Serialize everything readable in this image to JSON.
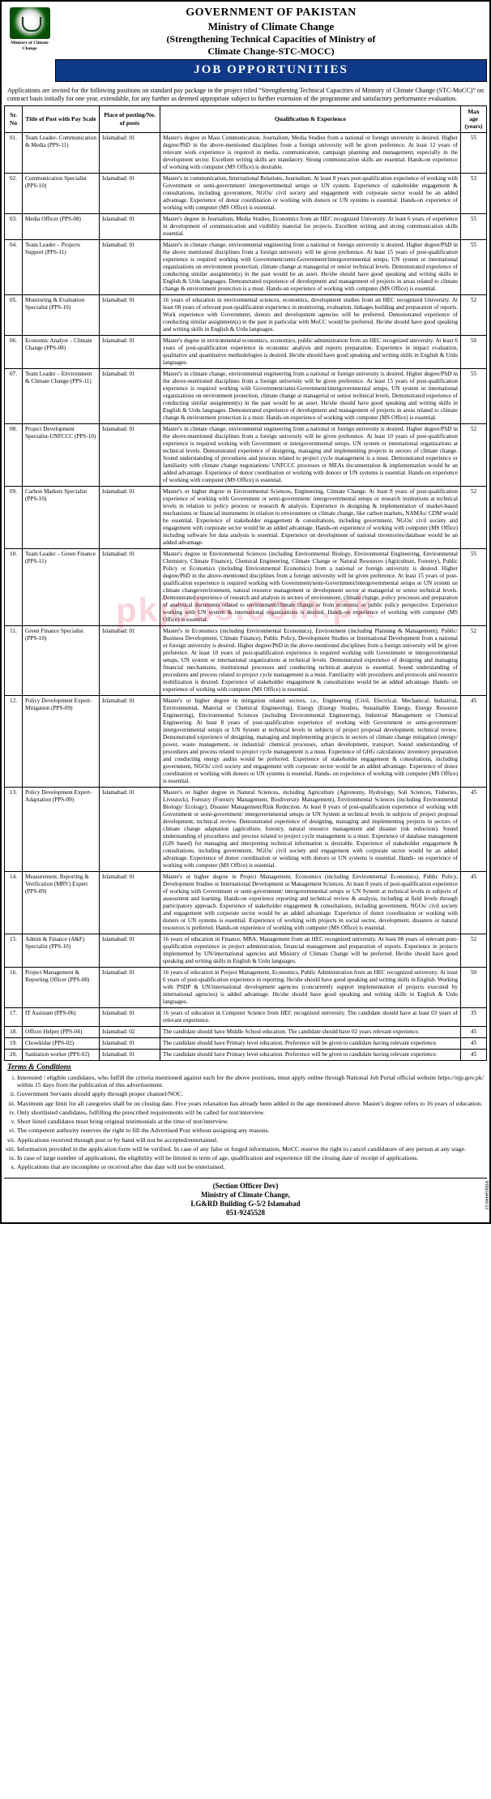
{
  "header": {
    "gov": "GOVERNMENT OF PAKISTAN",
    "ministry": "Ministry of Climate Change",
    "subtitle1": "(Strengthening Technical Capacities of Ministry of",
    "subtitle2": "Climate Change-STC-MOCC)",
    "banner": "JOB OPPORTUNITIES",
    "emblem_caption": "Ministry of Climate Change"
  },
  "preamble": "Applications are invited for the following positions on standard pay package in the project titled “Strengthening Technical Capacities of Ministry of Climate Change (STC-MoCC)” on contract basis initially for one year, extendable, for any further as deemed appropriate subject to further extension of the programme and satisfactory performance evaluation.",
  "columns": {
    "no": "Sr. No",
    "title": "Title of Post with Pay Scale",
    "place": "Place of posting/No. of posts",
    "qual": "Qualification & Experience",
    "age": "Max age (years)"
  },
  "rows": [
    {
      "no": "01.",
      "title": "Team Leader- Communication & Media (PPS-11)",
      "place": "Islamabad: 01",
      "qual": "Master's degree in Mass Communication, Journalism, Media Studies from a national or foreign university is desired. Higher degree/PhD in the above-mentioned disciplines from a foreign university will be given preference. At least 12 years of relevant work experience is required in media, communication, campaign planning and management, especially in the development sector. Excellent writing skills are mandatory. Strong communication skills are essential. Hands-on experience of working with computer (MS Office) is desirable.",
      "age": "55"
    },
    {
      "no": "02.",
      "title": "Communication Specialist (PPS-10)",
      "place": "Islamabad: 01",
      "qual": "Master's in communication, International Relations, Journalism. At least 8 years post-qualification experience of working with Government or semi-government/ intergovernmental setups or UN system. Experience of stakeholder engagement & consultations, including government, NGOs/ civil society and engagement with corporate sector would be an added advantage. Experience of donor coordination or working with donors or UN systems is essential. Hands-on experience of working with computer (MS Office) is essential.",
      "age": "53"
    },
    {
      "no": "03.",
      "title": "Media Officer (PPS-08)",
      "place": "Islamabad: 01",
      "qual": "Master's degree in Journalism, Media Studies, Economics from an HEC recognized University. At least 6 years of experience in development of communication and visibility material for projects. Excellent writing and strong communication skills essential.",
      "age": "55"
    },
    {
      "no": "04.",
      "title": "Team Leader – Projects Support (PPS-11)",
      "place": "Islamabad: 01",
      "qual": "Master's in climate change, environmental engineering from a national or foreign university is desired. Higher degree/PhD in the above mentioned disciplines from a foreign university will be given preference. At least 15 years of post-qualification experience is required working with Government/semi-Government/intergovernmental setups, UN system or international organizations on environment protection, climate change at managerial or senior technical levels. Demonstrated experience of conducting similar assignment(s) in the past would be an asset. He/she should have good speaking and writing skills in English & Urdu languages. Demonstrated experience of development and management of projects in areas related to climate change & environment protection is a must. Hands-on experience of working with computer (MS Office) is essential.",
      "age": "55"
    },
    {
      "no": "05.",
      "title": "Monitoring & Evaluation Specialist (PPS-10)",
      "place": "Islamabad: 01",
      "qual": "16 years of education in environmental sciences, economics, development studies from an HEC recognized University. At least 08 years of relevant post-qualification experience in monitoring, evaluation, linkages building and preparation of reports. Work experience with Government, donors and development agencies will be preferred. Demonstrated experience of conducting similar assignment(s) in the past in particular with MoCC would be preferred. He/she should have good speaking and writing skills in English & Urdu languages.",
      "age": "52"
    },
    {
      "no": "06.",
      "title": "Economic Analyst – Climate Change (PPS-08)",
      "place": "Islamabad: 01",
      "qual": "Master's degree in environmental economics, economics, public administration from an HEC recognized university. At least 6 years of post-qualification experience in economic analysis and reports preparation. Experience in impact evaluation, qualitative and quantitative methodologies is desired. He/she should have good speaking and writing skills in English & Urdu languages.",
      "age": "50"
    },
    {
      "no": "07.",
      "title": "Team Leader – Environment & Climate Change (PPS-11)",
      "place": "Islamabad: 01",
      "qual": "Master's in climate change, environmental engineering from a national or foreign university is desired. Higher degree/PhD in the above-mentioned disciplines from a foreign university will be given preference. At least 15 years of post-qualification experience is required working with Government/semi-Government/intergovernmental setups, UN system or international organizations on environment protection, climate change at managerial or senior technical levels. Demonstrated experience of conducting similar assignment(s) in the past would be an asset. He/she should have good speaking and writing skills in English & Urdu languages. Demonstrated experience of development and management of projects in areas related to climate change & environment protection is a must. Hands-on experience of working with computer (MS Office) is essential.",
      "age": "55"
    },
    {
      "no": "08.",
      "title": "Project Development Specialist-UNFCCC (PPS-10)",
      "place": "Islamabad: 01",
      "qual": "Master's in climate change, environmental engineering from a national or foreign university is desired. Higher degree/PhD in the above-mentioned disciplines from a foreign university will be given preference. At least 10 years of post-qualification experience is required working with Government or intergovernmental setups, UN system or international organizations at technical levels. Demonstrated experience of designing, managing and implementing projects in sectors of climate change. Sound understanding of procedures and process related to project cycle management is a must. Demonstrated experience or familiarity with climate change negotiations/ UNFCCC processes or MEAs documentation & implementation would be an added advantage. Experience of donor coordination or working with donors or UN systems is essential. Hands-on experience of working with computer (MS Office) is essential.",
      "age": "52"
    },
    {
      "no": "09.",
      "title": "Carbon Markets Specialist (PPS-10)",
      "place": "Islamabad: 01",
      "qual": "Master's or higher degree in Environmental Sciences, Engineering, Climate Change. At least 8 years of post-qualification experience of working with Government or semi-government/ intergovernmental setups or research institutions at technical levels in relation to policy process or research & analysis. Experience in designing & implementation of market-based mechanisms or financial instruments in relation to environment or climate change, like carbon markets, NAMAs/ CDM would be essential. Experience of stakeholder engagement & consultations, including government, NGOs/ civil society and engagement with corporate sector would be an added advantage. Hands-on experience of working with computer (MS Office) including software for data analysis is essential. Experience on development of national inventories/database would be an added advantage.",
      "age": "52"
    },
    {
      "no": "10.",
      "title": "Team Leader – Green Finance (PPS-11)",
      "place": "Islamabad: 01",
      "qual": "Master's degree in Environmental Sciences (including Environmental Biology, Environmental Engineering, Environmental Chemistry, Climate Finance), Chemical Engineering, Climate Change or Natural Resources (Agriculture, Forestry), Public Policy or Economics (including Environmental Economics) from a national or foreign university is desired. Higher degree/PhD in the above-mentioned disciplines from a foreign university will be given preference. At least 15 years of post-qualification experience is required working with Government/semi-Government/intergovernmental setups or UN system on climate change/environment, natural resource management or development sector at managerial or senior technical levels. Demonstrated experience of research and analysis in sectors of environment, climate change, policy processes and preparation of analytical documents related to environment/climate change or from economic or public policy perspective. Experience working with UN system & international organizations is desired. Hands-on experience of working with computer (MS Office) is essential.",
      "age": "55"
    },
    {
      "no": "11.",
      "title": "Green Finance Specialist (PPS-10)",
      "place": "Islamabad: 01",
      "qual": "Master's in Economics (including Environmental Economics), Environment (including Planning & Management), Public/ Business Development, Climate Finance), Public Policy, Development Studies or International Development from a national or foreign university is desired. Higher degree/PhD in the above-mentioned disciplines from a foreign university will be given preference. At least 10 years of post-qualification experience is required working with Government or intergovernmental setups, UN system or international organizations at technical levels. Demonstrated experience of designing and managing financial mechanisms, institutional processes and conducting technical analysis is essential. Sound understanding of procedures and process related to project cycle management is a must. Familiarity with procedures and protocols and resource mobilization is desired. Experience of stakeholder engagement & consultations would be an added advantage. Hands- on experience of working with computer (MS Office) is essential.",
      "age": "52"
    },
    {
      "no": "12.",
      "title": "Policy Development Expert-Mitigation (PPS-09)",
      "place": "Islamabad: 01",
      "qual": "Master's or higher degree in mitigation related sectors, i.e., Engineering (Civil, Electrical, Mechanical, Industrial, Environmental, Material or Chemical Engineering), Energy (Energy Studies, Sustainable Energy, Energy Resource Engineering), Environmental Sciences (including Environmental Engineering), Industrial Management or Chemical Engineering. At least 8 years of post-qualification experience of working with Government or semi-government/ intergovernmental setups or UN System at technical levels in subjects of project proposal development, technical review. Demonstrated experience of designing, managing and implementing projects in sectors of climate change mitigation (energy/ power, waste management, or industrial/ chemical processes, urban development, transport. Sound understanding of procedures and process related to project cycle management is a must. Experience of GHG calculations/ inventory preparation and conducting energy audits would be preferred. Experience of stakeholder engagement & consultations, including government, NGOs/ civil society and engagement with corporate sector would be an added advantage. Experience of donor coordination or working with donors or UN systems is essential. Hands- on experience of working with computer (MS Office) is essential.",
      "age": "45"
    },
    {
      "no": "13.",
      "title": "Policy Development Expert-Adaptation (PPS-09)",
      "place": "Islamabad: 01",
      "qual": "Master's or higher degree in Natural Sciences, including Agriculture (Agronomy, Hydrology, Soil Sciences, Fisheries, Livestock), Forestry (Forestry Management, Biodiversity Management), Environmental Sciences (including Environmental Biology/ Ecology), Disaster Management/Risk Reduction. At least 8 years of post-qualification experience of working with Government or semi-government/ intergovernmental setups or UN System at technical levels in subjects of project proposal development, technical review. Demonstrated experience of designing, managing and implementing projects in sectors of climate change adaptation (agriculture, forestry, natural resource management and disaster risk reduction). Sound understanding of procedures and process related to project cycle management is a must. Experience of database management (GIS based) for managing and interpreting technical information is desirable. Experience of stakeholder engagement & consultations, including government, NGOs/ civil society and engagement with corporate sector would be an added advantage. Experience of donor coordination or working with donors or UN systems is essential. Hands- on experience of working with computer (MS Office) is essential.",
      "age": "45"
    },
    {
      "no": "14.",
      "title": "Measurement, Reporting & Verification (MRV) Expert (PPS-09)",
      "place": "Islamabad: 01",
      "qual": "Master's or higher degree in Project Management, Economics (including Environmental Economics), Public Policy, Development Studies or International Development or Management Sciences. At least 8 years of post-qualification experience of working with Government or semi-government/ intergovernmental setups or UN System at technical levels in subjects of assessment and learning. Hands-on experience reporting and technical review & analysis, including at field levels through participatory approach. Experience of stakeholder engagement & consultations, including government, NGOs/ civil society and engagement with corporate sector would be an added advantage. Experience of donor coordination or working with donors or UN systems is essential. Experience of working with projects in social sector, development, disasters or natural resources is preferred. Hands-on experience of working with computer (MS Office) is essential.",
      "age": "45"
    },
    {
      "no": "15.",
      "title": "Admin & Finance (A&F) Specialist (PPS-10)",
      "place": "Islamabad: 01",
      "qual": "16 years of education in Finance, MBA, Management from an HEC recognized university. At least 08 years of relevant post-qualification experience in project administration, financial management and preparation of reports. Experience in projects implemented by UN/international agencies and Ministry of Climate Change will be preferred. He/she should have good speaking and writing skills in English & Urdu languages.",
      "age": "52"
    },
    {
      "no": "16.",
      "title": "Project Management & Reporting Officer (PPS-08)",
      "place": "Islamabad: 01",
      "qual": "16 years of education in Project Management, Economics, Public Administration from an HEC recognized university. At least 6 years of post-qualification experience in reporting. He/she should have good speaking and writing skills in English. Working with PSDP & UN/international development agencies (concurrently support implementation of projects executed by international agencies) is added advantage. He/she should have good speaking and writing skills in English & Urdu languages.",
      "age": "50"
    },
    {
      "no": "17.",
      "title": "IT Assistant (PPS-06)",
      "place": "Islamabad: 01",
      "qual": "16 years of education in Computer Science from HEC recognized university. The candidate should have at least 03 years of relevant experience.",
      "age": "35"
    },
    {
      "no": "18.",
      "title": "Officer Helper (PPS-04)",
      "place": "Islamabad: 02",
      "qual": "The candidate should have Middle School education. The candidate should have 02 years relevant experience.",
      "age": "45"
    },
    {
      "no": "19.",
      "title": "Chowkidar (PPS-02)",
      "place": "Islamabad: 01",
      "qual": "The candidate should have Primary level education. Preference will be given to candidate having relevant experience.",
      "age": "45"
    },
    {
      "no": "20.",
      "title": "Sanitation worker (PPS-02)",
      "place": "Islamabad: 01",
      "qual": "The candidate should have Primary level education. Preference will be given to candidate having relevant experience.",
      "age": "45"
    }
  ],
  "terms_title": "Terms & Conditions",
  "terms": [
    "Interested / eligible candidates, who fulfill the criteria mentioned against each for the above positions, must apply online through National Job Portal official website https://njp.gov.pk/ within 15 days from the publication of this advertisement.",
    "Government Servants should apply through proper channel/NOC.",
    "Maximum age limit for all categories shall be on closing date. Five years relaxation has already been added in the age mentioned above. Master's degree refers to 16 years of education.",
    "Only shortlisted candidates, fulfilling the prescribed requirements will be called for test/interview.",
    "Short listed candidates must bring original testimonials at the time of test/interview.",
    "The competent authority reserves the right to fill the Advertised Post without assigning any reasons.",
    "Applications received through post or by hand will not be accepted/entertained.",
    "Information provided in the application form will be verified. In case of any false or forged information, MoCC reserve the right to cancel candidature of any person at any stage.",
    "In case of large number of applications, the eligibility will be limited in term of age, qualification and experience till the closing date of receipt of applications.",
    "Applications that are incomplete or received after due date will not be entertained."
  ],
  "footer": {
    "line1": "(Section Officer Dev)",
    "line2": "Ministry of Climate Change,",
    "line3": "LG&RD Building G-5/2 Islamabad",
    "line4": "051-9245528",
    "sidecode": "PID(I)4440/22"
  },
  "watermark": "pkjobs.com.pk"
}
